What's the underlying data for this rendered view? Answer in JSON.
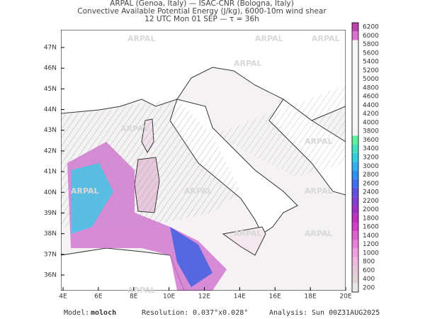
{
  "header": {
    "lines": [
      "ARPAL (Genoa, Italy)  —  ISAC-CNR (Bologna, Italy)",
      "Convective Available Potential Energy (J/kg), 6000-10m wind shear",
      "12 UTC Mon 01 SEP  —  τ = 36h"
    ]
  },
  "map": {
    "watermark": "ARPAL",
    "lon_ticks": [
      "4E",
      "6E",
      "8E",
      "10E",
      "12E",
      "14E",
      "16E",
      "18E",
      "20E"
    ],
    "lat_ticks": [
      "36N",
      "37N",
      "38N",
      "39N",
      "40N",
      "41N",
      "42N",
      "43N",
      "44N",
      "45N",
      "46N",
      "47N"
    ]
  },
  "colorbar": {
    "labels": [
      200,
      400,
      600,
      800,
      1000,
      1200,
      1400,
      1600,
      1800,
      2000,
      2200,
      2400,
      2600,
      2800,
      3000,
      3200,
      3400,
      3600,
      3800,
      4000,
      4200,
      4400,
      4600,
      4800,
      5000,
      5200,
      5400,
      5600,
      5800,
      6000,
      6200
    ],
    "colors": [
      "#e8e8e8",
      "#e0d4d4",
      "#e8c8d8",
      "#f0b8e0",
      "#f0a0e0",
      "#e880d8",
      "#e060d0",
      "#d040c8",
      "#c030c0",
      "#a030c8",
      "#8040d0",
      "#6050e0",
      "#4070f0",
      "#3090f0",
      "#30b0f0",
      "#30d0e0",
      "#40e0c0",
      "#60f0a0",
      "#f4f4f4",
      "#f6f6f6",
      "#f6f6f6",
      "#f6f6f6",
      "#f6f6f6",
      "#f6f6f6",
      "#f6f6f6",
      "#f6f6f6",
      "#f6f6f6",
      "#f6f6f6",
      "#f6f6f6",
      "#e070d0",
      "#c040b0"
    ]
  },
  "footer": {
    "model_label": "Model:",
    "model": "moloch",
    "resolution_label": "Resolution:",
    "resolution": "0.037°x0.028°",
    "analysis_label": "Analysis:",
    "analysis": "Sun 00Z31AUG2025"
  }
}
